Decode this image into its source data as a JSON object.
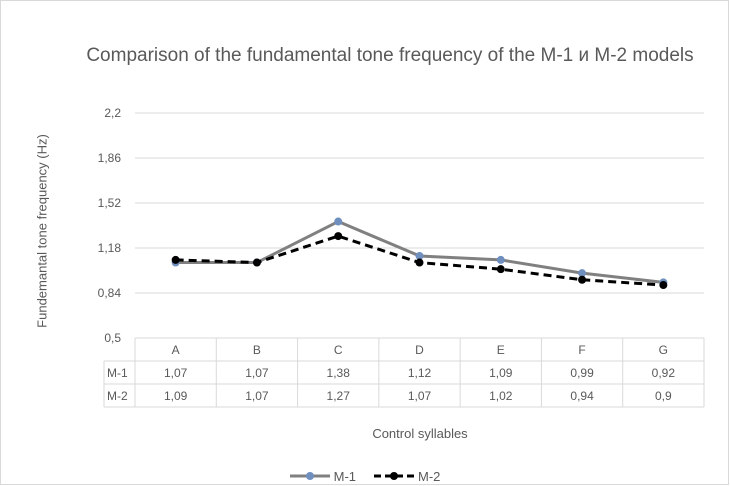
{
  "chart_data": {
    "type": "line",
    "title": "Comparison of the fundamental tone frequency of the M-1 и M-2 models",
    "xlabel": "Control syllables",
    "ylabel": "Fundemantal tone frequency (Hz)",
    "categories": [
      "A",
      "B",
      "C",
      "D",
      "E",
      "F",
      "G"
    ],
    "ylim": [
      0.5,
      2.2
    ],
    "yticks": [
      "0,5",
      "0,84",
      "1,18",
      "1,52",
      "1,86",
      "2,2"
    ],
    "ytick_values": [
      0.5,
      0.84,
      1.18,
      1.52,
      1.86,
      2.2
    ],
    "grid": true,
    "legend_position": "bottom",
    "data_table": true,
    "series": [
      {
        "name": "M-1",
        "values": [
          1.07,
          1.07,
          1.38,
          1.12,
          1.09,
          0.99,
          0.92
        ],
        "labels": [
          "1,07",
          "1,07",
          "1,38",
          "1,12",
          "1,09",
          "0,99",
          "0,92"
        ],
        "color": "#808080",
        "marker_color": "#6f8fbf",
        "style": "solid"
      },
      {
        "name": "M-2",
        "values": [
          1.09,
          1.07,
          1.27,
          1.07,
          1.02,
          0.94,
          0.9
        ],
        "labels": [
          "1,09",
          "1,07",
          "1,27",
          "1,07",
          "1,02",
          "0,94",
          "0,9"
        ],
        "color": "#000000",
        "marker_color": "#000000",
        "style": "dashed"
      }
    ]
  }
}
